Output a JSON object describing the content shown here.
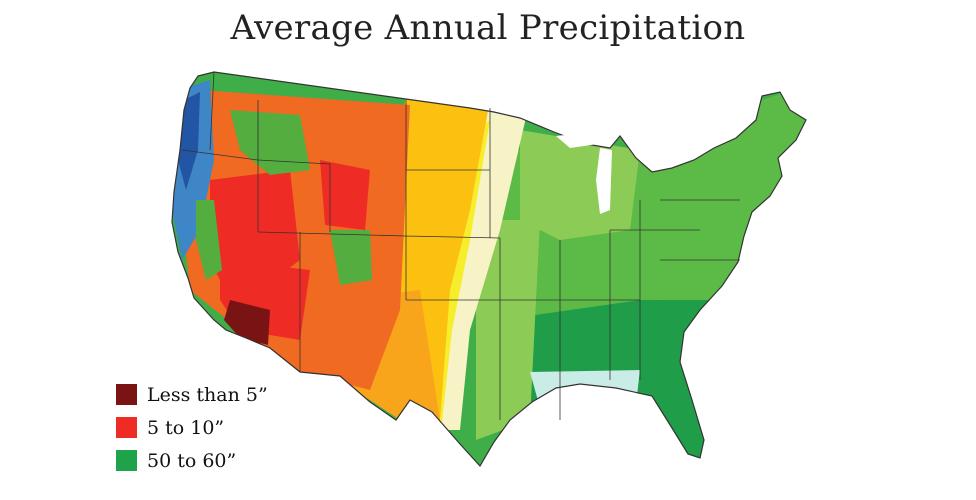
{
  "title": "Average Annual Precipitation",
  "legend": {
    "items": [
      {
        "label": "Less than 5”",
        "color": "#7a1313"
      },
      {
        "label": "5 to 10”",
        "color": "#ee2b24"
      },
      {
        "label": "50 to 60”",
        "color": "#1fa34a"
      }
    ]
  },
  "zone_colors": {
    "desert_core": "#7a1313",
    "very_dry": "#ee2b24",
    "dry": "#f06a22",
    "semi_arid": "#f9a51b",
    "plains": "#fcc010",
    "transition": "#f6ee2a",
    "pale": "#f7f3c6",
    "light_green": "#8ccc56",
    "green": "#5cbb47",
    "mid_green": "#3fae49",
    "deep_green": "#1f9d48",
    "pale_cyan": "#c9ece6",
    "mountain_green": "#54ad3f",
    "wet_blue": "#3f86c7",
    "very_wet": "#2255a3",
    "boundary": "#333333"
  }
}
